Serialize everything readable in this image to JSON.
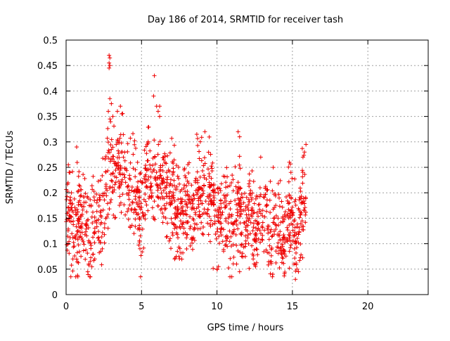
{
  "chart_data": {
    "type": "scatter",
    "title": "Day 186 of 2014, SRMTID for receiver tash",
    "xlabel": "GPS time / hours",
    "ylabel": "SRMTID / TECUs",
    "xlim": [
      0,
      24
    ],
    "ylim": [
      0,
      0.5
    ],
    "x_ticks": [
      0,
      5,
      10,
      15,
      20
    ],
    "y_ticks": [
      0,
      0.05,
      0.1,
      0.15,
      0.2,
      0.25,
      0.3,
      0.35,
      0.4,
      0.45,
      0.5
    ],
    "x_tick_labels": [
      "0",
      "5",
      "10",
      "15",
      "20"
    ],
    "y_tick_labels": [
      "0",
      "0.05",
      "0.1",
      "0.15",
      "0.2",
      "0.25",
      "0.3",
      "0.35",
      "0.4",
      "0.45",
      "0.5"
    ],
    "grid": true,
    "marker": "+",
    "color": "#ee0000",
    "trend": [
      [
        0.0,
        0.15
      ],
      [
        0.5,
        0.13
      ],
      [
        1.0,
        0.13
      ],
      [
        1.5,
        0.12
      ],
      [
        2.0,
        0.15
      ],
      [
        2.5,
        0.17
      ],
      [
        2.9,
        0.24
      ],
      [
        3.2,
        0.26
      ],
      [
        3.5,
        0.23
      ],
      [
        4.0,
        0.22
      ],
      [
        4.5,
        0.19
      ],
      [
        5.0,
        0.18
      ],
      [
        5.5,
        0.24
      ],
      [
        6.0,
        0.23
      ],
      [
        6.5,
        0.2
      ],
      [
        7.0,
        0.18
      ],
      [
        7.5,
        0.16
      ],
      [
        8.0,
        0.17
      ],
      [
        8.5,
        0.19
      ],
      [
        9.0,
        0.2
      ],
      [
        9.5,
        0.18
      ],
      [
        10.0,
        0.15
      ],
      [
        10.5,
        0.17
      ],
      [
        11.0,
        0.16
      ],
      [
        11.5,
        0.17
      ],
      [
        12.0,
        0.15
      ],
      [
        12.5,
        0.14
      ],
      [
        13.0,
        0.15
      ],
      [
        13.5,
        0.15
      ],
      [
        14.0,
        0.14
      ],
      [
        14.5,
        0.14
      ],
      [
        15.0,
        0.13
      ],
      [
        15.5,
        0.14
      ],
      [
        15.9,
        0.15
      ]
    ],
    "spread": 0.045,
    "outliers": [
      {
        "x": 2.85,
        "y": 0.47
      },
      {
        "x": 2.9,
        "y": 0.465
      },
      {
        "x": 2.85,
        "y": 0.455
      },
      {
        "x": 2.9,
        "y": 0.45
      },
      {
        "x": 2.85,
        "y": 0.445
      },
      {
        "x": 5.85,
        "y": 0.43
      },
      {
        "x": 5.8,
        "y": 0.39
      },
      {
        "x": 2.9,
        "y": 0.385
      },
      {
        "x": 3.0,
        "y": 0.375
      },
      {
        "x": 3.6,
        "y": 0.37
      },
      {
        "x": 6.0,
        "y": 0.37
      },
      {
        "x": 6.2,
        "y": 0.37
      },
      {
        "x": 2.8,
        "y": 0.36
      },
      {
        "x": 3.4,
        "y": 0.36
      },
      {
        "x": 6.1,
        "y": 0.36
      },
      {
        "x": 3.7,
        "y": 0.355
      },
      {
        "x": 3.1,
        "y": 0.35
      },
      {
        "x": 6.2,
        "y": 0.35
      },
      {
        "x": 9.2,
        "y": 0.32
      },
      {
        "x": 11.4,
        "y": 0.32
      },
      {
        "x": 11.5,
        "y": 0.31
      },
      {
        "x": 15.9,
        "y": 0.295
      },
      {
        "x": 0.7,
        "y": 0.29
      },
      {
        "x": 15.8,
        "y": 0.28
      },
      {
        "x": 15.7,
        "y": 0.27
      },
      {
        "x": 12.9,
        "y": 0.27
      },
      {
        "x": 14.8,
        "y": 0.26
      },
      {
        "x": 14.9,
        "y": 0.24
      },
      {
        "x": 0.15,
        "y": 0.255
      },
      {
        "x": 0.2,
        "y": 0.24
      },
      {
        "x": 10.0,
        "y": 0.05
      },
      {
        "x": 10.1,
        "y": 0.055
      },
      {
        "x": 11.5,
        "y": 0.045
      },
      {
        "x": 11.3,
        "y": 0.06
      },
      {
        "x": 13.7,
        "y": 0.04
      },
      {
        "x": 15.3,
        "y": 0.05
      },
      {
        "x": 15.4,
        "y": 0.045
      },
      {
        "x": 15.2,
        "y": 0.03
      },
      {
        "x": 15.1,
        "y": 0.06
      },
      {
        "x": 1.5,
        "y": 0.06
      },
      {
        "x": 1.6,
        "y": 0.065
      },
      {
        "x": 1.9,
        "y": 0.07
      },
      {
        "x": 0.45,
        "y": 0.07
      },
      {
        "x": 7.2,
        "y": 0.07
      },
      {
        "x": 7.3,
        "y": 0.075
      },
      {
        "x": 2.3,
        "y": 0.085
      },
      {
        "x": 2.4,
        "y": 0.09
      },
      {
        "x": 12.4,
        "y": 0.07
      },
      {
        "x": 6.9,
        "y": 0.11
      },
      {
        "x": 4.5,
        "y": 0.12
      }
    ]
  }
}
